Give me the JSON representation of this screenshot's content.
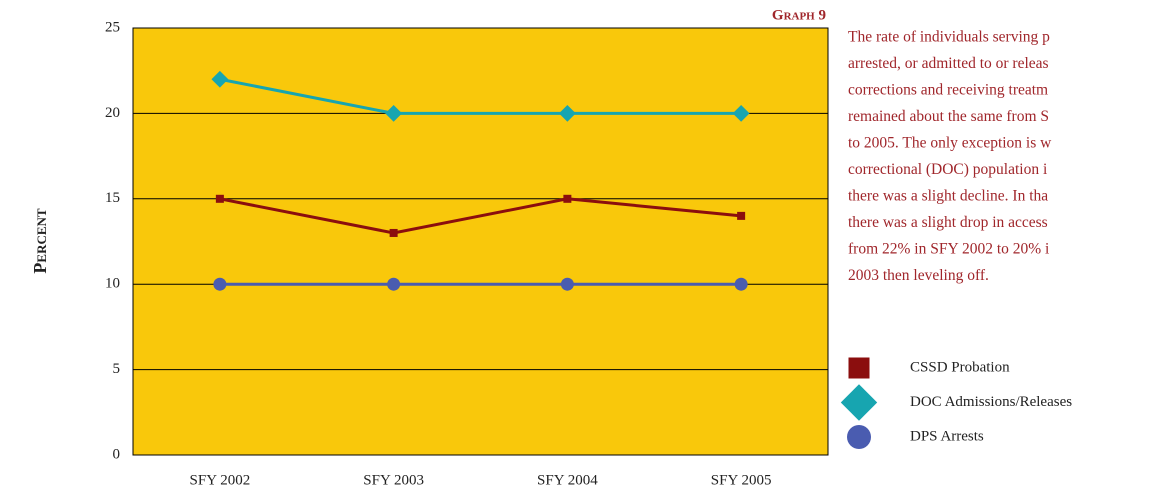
{
  "chart_data": {
    "type": "line",
    "title": "Graph 9",
    "y_label": "Percent",
    "categories": [
      "SFY 2002",
      "SFY 2003",
      "SFY 2004",
      "SFY 2005"
    ],
    "series": [
      {
        "name": "CSSD Probation",
        "color": "#8b0e0e",
        "marker": "square",
        "values": [
          15,
          13,
          15,
          14
        ]
      },
      {
        "name": "DOC Admissions/Releases",
        "color": "#17a5b0",
        "marker": "diamond",
        "values": [
          22,
          20,
          20,
          20
        ]
      },
      {
        "name": "DPS Arrests",
        "color": "#4a5cb0",
        "marker": "circle",
        "values": [
          10,
          10,
          10,
          10
        ]
      }
    ],
    "ylim": [
      0,
      25
    ],
    "yticks": [
      0,
      5,
      10,
      15,
      20,
      25
    ],
    "grid": true,
    "plot_background": "#f9c80b",
    "annotation": [
      "The rate of individuals serving p",
      "arrested, or admitted to or releas",
      "corrections and receiving treatm",
      "remained about the same from S",
      "to 2005. The only exception is w",
      "correctional (DOC) population i",
      "there was a slight decline. In tha",
      "there was a slight drop in access",
      "from 22% in SFY 2002 to 20% i",
      "2003 then leveling off."
    ]
  }
}
